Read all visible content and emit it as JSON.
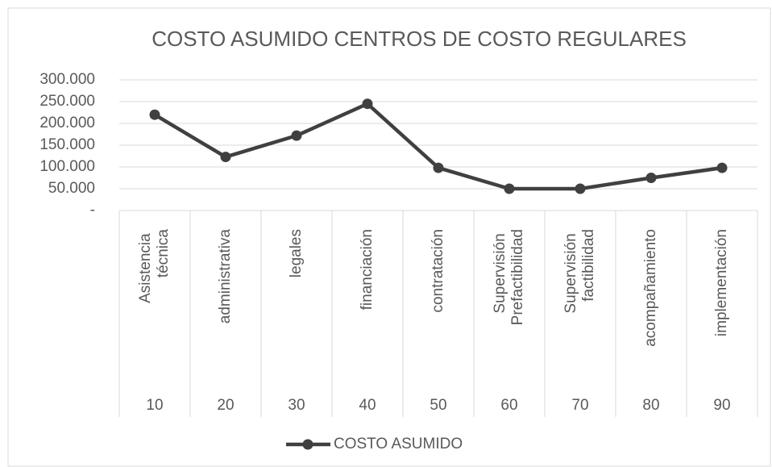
{
  "chart_data": {
    "type": "line",
    "title": "COSTO ASUMIDO CENTROS DE COSTO REGULARES",
    "categories": [
      "Asistencia técnica",
      "administrativa",
      "legales",
      "financiación",
      "contratación",
      "Supervisión Prefactibilidad",
      "Supervisión factibilidad",
      "acompañamiento",
      "implementación"
    ],
    "codes": [
      "10",
      "20",
      "30",
      "40",
      "50",
      "60",
      "70",
      "80",
      "90"
    ],
    "series": [
      {
        "name": "COSTO ASUMIDO",
        "color": "#404040",
        "values": [
          220000,
          123000,
          172000,
          245000,
          98000,
          50000,
          50000,
          75000,
          98000
        ]
      }
    ],
    "ylim": [
      0,
      300000
    ],
    "yticks": [
      {
        "value": 0,
        "label": "-"
      },
      {
        "value": 50000,
        "label": "50.000"
      },
      {
        "value": 100000,
        "label": "100.000"
      },
      {
        "value": 150000,
        "label": "150.000"
      },
      {
        "value": 200000,
        "label": "200.000"
      },
      {
        "value": 250000,
        "label": "250.000"
      },
      {
        "value": 300000,
        "label": "300.000"
      }
    ],
    "grid": true,
    "legend": "bottom"
  }
}
